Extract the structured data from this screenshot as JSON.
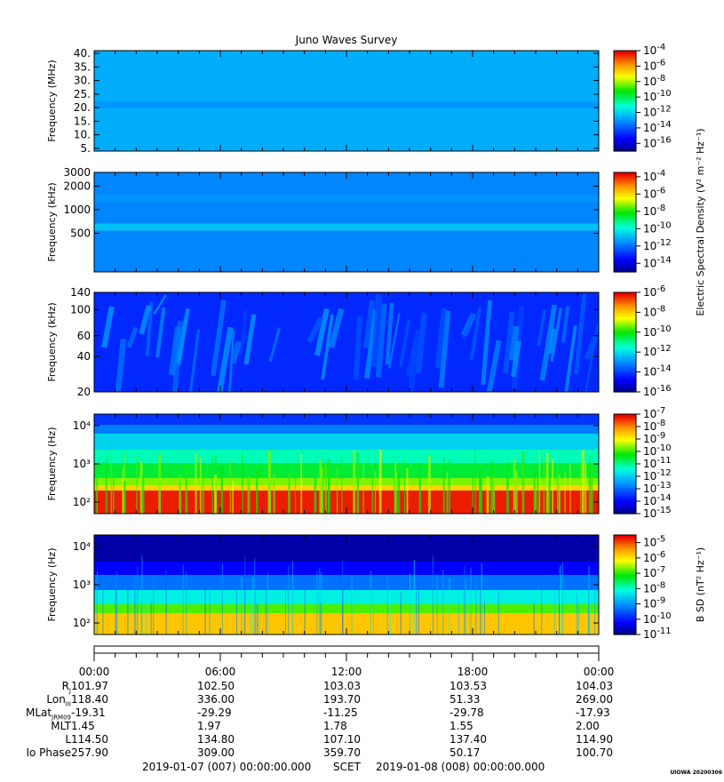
{
  "chart_data": [
    {
      "type": "heatmap",
      "title": "Juno Waves Survey",
      "ylabel": "Frequency (MHz)",
      "ylim": [
        4,
        41
      ],
      "yscale": "linear",
      "yticks": [
        "40.",
        "35.",
        "30.",
        "25.",
        "20.",
        "15.",
        "10.",
        "5."
      ],
      "ytick_values": [
        40,
        35,
        30,
        25,
        20,
        15,
        10,
        5
      ],
      "colorbar": {
        "min_exp": -17,
        "max_exp": -4,
        "ticks": [
          -4,
          -6,
          -8,
          -10,
          -12,
          -14,
          -16
        ]
      },
      "bands": [
        {
          "value": 21,
          "exp": -13
        }
      ],
      "base_exp": -12.6
    },
    {
      "type": "heatmap",
      "ylabel": "Frequency (kHz)",
      "ylim": [
        160,
        3000
      ],
      "yscale": "log",
      "yticks": [
        "3000",
        "2000",
        "1000",
        "500"
      ],
      "ytick_values": [
        3000,
        2000,
        1000,
        500
      ],
      "colorbar": {
        "min_exp": -15,
        "max_exp": -3.5,
        "ticks": [
          -4,
          -6,
          -8,
          -10,
          -12,
          -14
        ]
      },
      "bands": [
        {
          "value": 600,
          "exp": -10.8
        },
        {
          "value": 1400,
          "exp": -11.5
        }
      ],
      "base_exp": -11.7
    },
    {
      "type": "heatmap",
      "ylabel": "Frequency (kHz)",
      "ylim": [
        20,
        140
      ],
      "yscale": "log",
      "yticks": [
        "140",
        "100",
        "60",
        "40",
        "20"
      ],
      "ytick_values": [
        140,
        100,
        60,
        40,
        20
      ],
      "colorbar": {
        "min_exp": -16,
        "max_exp": -6,
        "ticks": [
          -6,
          -8,
          -10,
          -12,
          -14,
          -16
        ]
      },
      "base_exp": -14.3
    },
    {
      "type": "heatmap",
      "ylabel": "Frequency (Hz)",
      "ylim": [
        50,
        20000
      ],
      "yscale": "log",
      "yticks": [
        "10⁴",
        "10³",
        "10²"
      ],
      "ytick_values": [
        10000,
        1000,
        100
      ],
      "colorbar": {
        "min_exp": -15,
        "max_exp": -7,
        "ticks": [
          -7,
          -8,
          -9,
          -10,
          -11,
          -12,
          -13,
          -14,
          -15
        ]
      }
    },
    {
      "type": "heatmap",
      "ylabel": "Frequency (Hz)",
      "ylim": [
        50,
        20000
      ],
      "yscale": "log",
      "yticks": [
        "10⁴",
        "10³",
        "10²"
      ],
      "ytick_values": [
        10000,
        1000,
        100
      ],
      "colorbar": {
        "min_exp": -11,
        "max_exp": -4.5,
        "ticks": [
          -5,
          -6,
          -7,
          -8,
          -9,
          -10,
          -11
        ]
      }
    }
  ],
  "colorbar_labels": {
    "electric": "Electric Spectral Density (V² m⁻² Hz⁻¹)",
    "magnetic": "B SD (nT² Hz⁻¹)"
  },
  "colorbar_tick_base": "10",
  "time_ticks": [
    "00:00",
    "06:00",
    "12:00",
    "18:00",
    "00:00"
  ],
  "ephemeris": [
    {
      "label": "R",
      "sub": "J",
      "values": [
        "101.97",
        "102.50",
        "103.03",
        "103.53",
        "104.03"
      ]
    },
    {
      "label": "Lon",
      "sub": "III",
      "values": [
        "118.40",
        "336.00",
        "193.70",
        "51.33",
        "269.00"
      ]
    },
    {
      "label": "MLat",
      "sub": "JRM09",
      "values": [
        "-19.31",
        "-29.29",
        "-11.25",
        "-29.78",
        "-17.93"
      ]
    },
    {
      "label": "MLT",
      "sub": "",
      "values": [
        "1.45",
        "1.97",
        "1.78",
        "1.55",
        "2.00"
      ]
    },
    {
      "label": "L",
      "sub": "",
      "values": [
        "114.50",
        "134.80",
        "107.10",
        "137.40",
        "114.90"
      ]
    },
    {
      "label": "Io Phase",
      "sub": "",
      "values": [
        "257.90",
        "309.00",
        "359.70",
        "50.17",
        "100.70"
      ]
    }
  ],
  "footer": {
    "start": "2019-01-07 (007) 00:00:00.000",
    "mid": "SCET",
    "end": "2019-01-08 (008) 00:00:00.000"
  },
  "stamp": "UIOWA 20200306"
}
